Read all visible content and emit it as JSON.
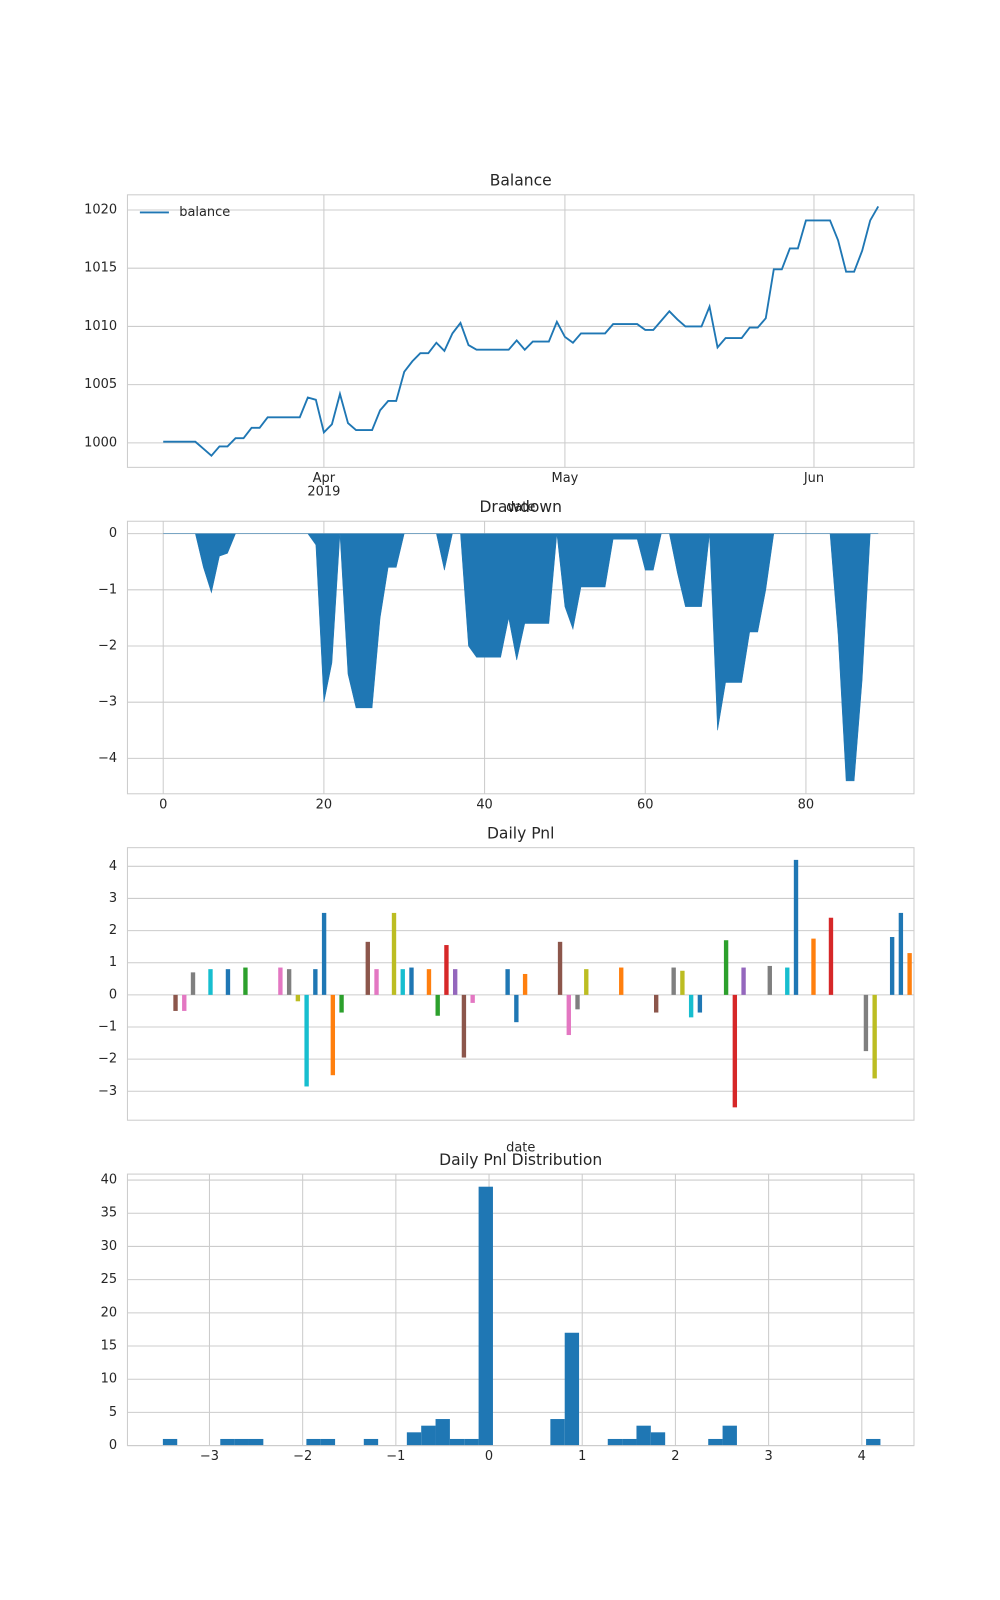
{
  "chart_data": [
    {
      "type": "line",
      "title": "Balance",
      "xlabel": "date",
      "series": [
        {
          "name": "balance",
          "color": "#1f77b4",
          "values": [
            1000.1,
            1000.1,
            1000.1,
            1000.1,
            1000.1,
            999.5,
            998.9,
            999.7,
            999.7,
            1000.4,
            1000.4,
            1001.3,
            1001.3,
            1002.2,
            1002.2,
            1002.2,
            1002.2,
            1002.2,
            1003.9,
            1003.7,
            1000.9,
            1001.6,
            1004.2,
            1001.7,
            1001.1,
            1001.1,
            1001.1,
            1002.8,
            1003.6,
            1003.6,
            1006.1,
            1007.0,
            1007.7,
            1007.7,
            1008.6,
            1007.9,
            1009.4,
            1010.3,
            1008.4,
            1008.0,
            1008.0,
            1008.0,
            1008.0,
            1008.0,
            1008.8,
            1008.0,
            1008.7,
            1008.7,
            1008.7,
            1010.4,
            1009.1,
            1008.6,
            1009.4,
            1009.4,
            1009.4,
            1009.4,
            1010.2,
            1010.2,
            1010.2,
            1010.2,
            1009.7,
            1009.7,
            1010.5,
            1011.3,
            1010.6,
            1010.0,
            1010.0,
            1010.0,
            1011.7,
            1008.2,
            1009.0,
            1009.0,
            1009.0,
            1009.9,
            1009.9,
            1010.7,
            1014.9,
            1014.9,
            1016.7,
            1016.7,
            1019.1,
            1019.1,
            1019.1,
            1019.1,
            1017.4,
            1014.7,
            1014.7,
            1016.5,
            1019.1,
            1020.3
          ]
        }
      ],
      "xlim": [
        -4.45,
        93.45
      ],
      "xticks": [
        {
          "value": 20,
          "label": "Apr\n2019"
        },
        {
          "value": 50,
          "label": "May"
        },
        {
          "value": 81,
          "label": "Jun"
        }
      ],
      "ylim": [
        997.9,
        1021.3
      ],
      "yticks": [
        1000,
        1005,
        1010,
        1015,
        1020
      ],
      "grid": true,
      "legend": "upper left"
    },
    {
      "type": "area",
      "title": "Drawdown",
      "color": "#1f77b4",
      "values": [
        0,
        0,
        0,
        0,
        0,
        -0.6,
        -1.05,
        -0.4,
        -0.35,
        0,
        0,
        0,
        0,
        0,
        0,
        0,
        0,
        0,
        0,
        -0.2,
        -3.0,
        -2.3,
        0,
        -2.5,
        -3.1,
        -3.1,
        -3.1,
        -1.5,
        -0.6,
        -0.6,
        0,
        0,
        0,
        0,
        0,
        -0.65,
        0,
        0,
        -2.0,
        -2.2,
        -2.2,
        -2.2,
        -2.2,
        -1.5,
        -2.25,
        -1.6,
        -1.6,
        -1.6,
        -1.6,
        0,
        -1.3,
        -1.7,
        -0.95,
        -0.95,
        -0.95,
        -0.95,
        -0.1,
        -0.1,
        -0.1,
        -0.1,
        -0.65,
        -0.65,
        0,
        0,
        -0.7,
        -1.3,
        -1.3,
        -1.3,
        0,
        -3.5,
        -2.65,
        -2.65,
        -2.65,
        -1.75,
        -1.75,
        -1.0,
        0,
        0,
        0,
        0,
        0,
        0,
        0,
        0,
        -1.8,
        -4.4,
        -4.4,
        -2.6,
        0,
        0
      ],
      "xlim": [
        -4.45,
        93.45
      ],
      "xticks": [
        0,
        20,
        40,
        60,
        80
      ],
      "ylim": [
        -4.63,
        0.22
      ],
      "yticks": [
        {
          "value": -4,
          "label": "−4"
        },
        {
          "value": -3,
          "label": "−3"
        },
        {
          "value": -2,
          "label": "−2"
        },
        {
          "value": -1,
          "label": "−1"
        },
        0
      ],
      "grid": true
    },
    {
      "type": "bar",
      "title": "Daily Pnl",
      "xlabel": "date",
      "categories": [
        null,
        null,
        null,
        null,
        null,
        null,
        null,
        null,
        null,
        null,
        null,
        null,
        null,
        null,
        null,
        null,
        null,
        null,
        null,
        null,
        null,
        null,
        null,
        null,
        null,
        null,
        null,
        null,
        null,
        null,
        null,
        null,
        null,
        null,
        null,
        null,
        null,
        null,
        null,
        null,
        null,
        null,
        null,
        null,
        null,
        null,
        null,
        null,
        null,
        null,
        null,
        null,
        null,
        null,
        null,
        null,
        null,
        null,
        null,
        null,
        null,
        null,
        null,
        null,
        null,
        null,
        null,
        null,
        null,
        null,
        null,
        null,
        null,
        null,
        null,
        null,
        null,
        null,
        null,
        null,
        null,
        null,
        null,
        null,
        null,
        null,
        null,
        null,
        null,
        null
      ],
      "values": [
        0,
        0,
        0,
        0,
        0,
        -0.5,
        -0.5,
        0.7,
        0,
        0.8,
        0,
        0.8,
        0,
        0.85,
        0,
        0,
        0,
        0.85,
        0.8,
        -0.2,
        -2.85,
        0.8,
        2.55,
        -2.5,
        -0.55,
        0,
        0,
        1.65,
        0.8,
        0,
        2.55,
        0.8,
        0.85,
        0,
        0.8,
        -0.65,
        1.55,
        0.8,
        -1.95,
        -0.25,
        0,
        0,
        0,
        0.8,
        -0.85,
        0.65,
        0,
        0,
        0,
        1.65,
        -1.25,
        -0.45,
        0.8,
        0,
        0,
        0,
        0.85,
        0,
        0,
        0,
        -0.55,
        0,
        0.85,
        0.75,
        -0.7,
        -0.55,
        0,
        0,
        1.7,
        -3.5,
        0.85,
        0,
        0,
        0.9,
        0,
        0.85,
        4.2,
        0,
        1.75,
        0,
        2.4,
        0,
        0,
        0,
        -1.75,
        -2.6,
        0,
        1.8,
        2.55,
        1.3
      ],
      "colors": [
        "#1f77b4",
        "#ff7f0e",
        "#2ca02c",
        "#d62728",
        "#9467bd",
        "#8c564b",
        "#e377c2",
        "#7f7f7f",
        "#bcbd22",
        "#17becf",
        "#1f77b4",
        "#1f77b4",
        "#2ca02c",
        "#2ca02c",
        "#9467bd",
        "#8c564b",
        "#e377c2",
        "#e377c2",
        "#7f7f7f",
        "#bcbd22",
        "#17becf",
        "#1f77b4",
        "#1f77b4",
        "#ff7f0e",
        "#2ca02c",
        "#8c564b",
        "#e377c2",
        "#8c564b",
        "#e377c2",
        "#17becf",
        "#bcbd22",
        "#17becf",
        "#1f77b4",
        "#d62728",
        "#ff7f0e",
        "#2ca02c",
        "#d62728",
        "#9467bd",
        "#8c564b",
        "#e377c2",
        "#1f77b4",
        "#ff7f0e",
        "#2ca02c",
        "#1f77b4",
        "#1f77b4",
        "#ff7f0e",
        "#e377c2",
        "#7f7f7f",
        "#bcbd22",
        "#8c564b",
        "#e377c2",
        "#7f7f7f",
        "#bcbd22",
        "#d62728",
        "#9467bd",
        "#8c564b",
        "#ff7f0e",
        "#7f7f7f",
        "#bcbd22",
        "#17becf",
        "#8c564b",
        "#ff7f0e",
        "#7f7f7f",
        "#bcbd22",
        "#17becf",
        "#1f77b4",
        "#e377c2",
        "#7f7f7f",
        "#2ca02c",
        "#d62728",
        "#9467bd",
        "#ff7f0e",
        "#2ca02c",
        "#7f7f7f",
        "#9467bd",
        "#17becf",
        "#1f77b4",
        "#7f7f7f",
        "#ff7f0e",
        "#17becf",
        "#d62728",
        "#ff7f0e",
        "#2ca02c",
        "#d62728",
        "#7f7f7f",
        "#bcbd22",
        "#e377c2",
        "#1f77b4",
        "#1f77b4",
        "#ff7f0e"
      ],
      "ylim": [
        -3.9,
        4.58
      ],
      "yticks": [
        {
          "value": -3,
          "label": "−3"
        },
        {
          "value": -2,
          "label": "−2"
        },
        {
          "value": -1,
          "label": "−1"
        },
        0,
        1,
        2,
        3,
        4
      ],
      "grid": true
    },
    {
      "type": "histogram",
      "title": "Daily Pnl Distribution",
      "color": "#1f77b4",
      "bins": [
        -3.5,
        -3.346,
        -3.192,
        -3.038,
        -2.884,
        -2.73,
        -2.576,
        -2.422,
        -2.268,
        -2.114,
        -1.96,
        -1.806,
        -1.652,
        -1.498,
        -1.344,
        -1.19,
        -1.036,
        -0.882,
        -0.728,
        -0.574,
        -0.42,
        -0.266,
        -0.112,
        0.042,
        0.196,
        0.35,
        0.504,
        0.658,
        0.812,
        0.966,
        1.12,
        1.274,
        1.428,
        1.582,
        1.736,
        1.89,
        2.044,
        2.198,
        2.352,
        2.506,
        2.66,
        2.814,
        2.968,
        3.122,
        3.276,
        3.43,
        3.584,
        3.738,
        3.892,
        4.046,
        4.2
      ],
      "values": [
        1,
        0,
        0,
        0,
        1,
        1,
        1,
        0,
        0,
        0,
        1,
        1,
        0,
        0,
        1,
        0,
        0,
        2,
        3,
        4,
        1,
        1,
        39,
        0,
        0,
        0,
        0,
        4,
        17,
        0,
        0,
        1,
        1,
        3,
        2,
        0,
        0,
        0,
        1,
        3,
        0,
        0,
        0,
        0,
        0,
        0,
        0,
        0,
        0,
        1
      ],
      "xlim": [
        -3.88,
        4.56
      ],
      "xticks": [
        {
          "value": -3,
          "label": "−3"
        },
        {
          "value": -2,
          "label": "−2"
        },
        {
          "value": -1,
          "label": "−1"
        },
        0,
        1,
        2,
        3,
        4
      ],
      "ylim": [
        0,
        40.9
      ],
      "yticks": [
        0,
        5,
        10,
        15,
        20,
        25,
        30,
        35,
        40
      ],
      "grid": true
    }
  ]
}
